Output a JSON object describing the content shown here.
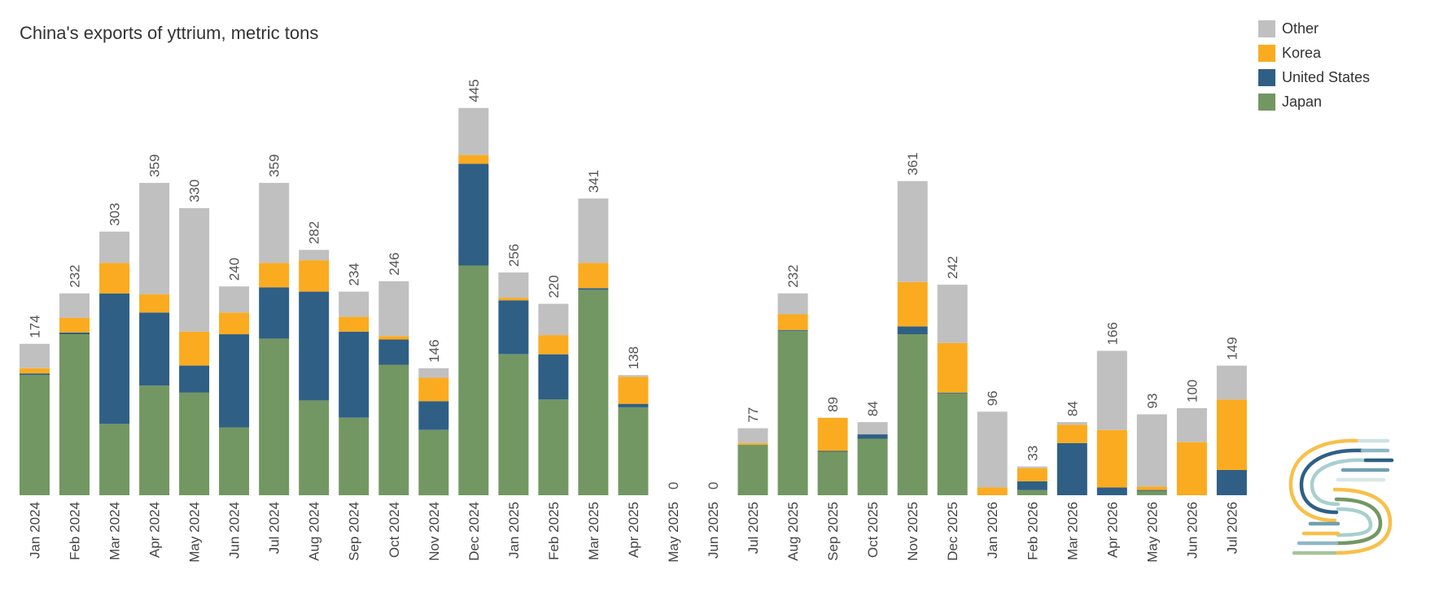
{
  "colors": {
    "Other": "#c0c0c0",
    "Korea": "#fbab1f",
    "United States": "#2f5f85",
    "Japan": "#739762"
  },
  "chart_data": {
    "type": "bar",
    "stacked": true,
    "title": "China's exports of yttrium, metric tons",
    "xlabel": "",
    "ylabel": "",
    "ylim": [
      0,
      460
    ],
    "grid": false,
    "legend_position": "top-right",
    "legend": [
      "Other",
      "Korea",
      "United States",
      "Japan"
    ],
    "categories": [
      "Jan 2024",
      "Feb 2024",
      "Mar 2024",
      "Apr 2024",
      "May 2024",
      "Jun 2024",
      "Jul 2024",
      "Aug 2024",
      "Sep 2024",
      "Oct 2024",
      "Nov 2024",
      "Dec 2024",
      "Jan 2025",
      "Feb 2025",
      "Mar 2025",
      "Apr 2025",
      "May 2025",
      "Jun 2025",
      "Jul 2025",
      "Aug 2025",
      "Sep 2025",
      "Oct 2025",
      "Nov 2025",
      "Dec 2025",
      "Jan 2026",
      "Feb 2026",
      "Mar 2026",
      "Apr 2026",
      "May 2026",
      "Jun 2026",
      "Jul 2026"
    ],
    "totals": [
      "174",
      "232",
      "303",
      "359",
      "330",
      "240",
      "359",
      "282",
      "234",
      "246",
      "146",
      "445",
      "256",
      "220",
      "341",
      "138",
      "0",
      "0",
      "77",
      "232",
      "89",
      "84",
      "361",
      "242",
      "96",
      "33",
      "84",
      "166",
      "93",
      "100",
      "149"
    ],
    "series": [
      {
        "name": "Japan",
        "values": [
          138,
          185,
          82,
          126,
          118,
          78,
          180,
          109,
          89,
          150,
          75,
          264,
          162,
          110,
          236,
          101,
          0,
          0,
          58,
          189,
          50,
          65,
          185,
          117,
          0,
          6,
          0,
          0,
          5,
          0,
          0
        ]
      },
      {
        "name": "United States",
        "values": [
          2,
          2,
          150,
          84,
          31,
          107,
          59,
          125,
          99,
          29,
          33,
          117,
          62,
          52,
          2,
          4,
          0,
          0,
          0,
          1,
          1,
          5,
          9,
          1,
          0,
          10,
          60,
          9,
          1,
          0,
          29
        ]
      },
      {
        "name": "Korea",
        "values": [
          6,
          17,
          35,
          21,
          39,
          25,
          28,
          36,
          17,
          4,
          27,
          10,
          3,
          22,
          29,
          31,
          0,
          0,
          2,
          18,
          38,
          0,
          51,
          57,
          9,
          15,
          21,
          66,
          4,
          61,
          81
        ]
      },
      {
        "name": "Other",
        "values": [
          28,
          28,
          36,
          128,
          142,
          30,
          92,
          12,
          29,
          63,
          11,
          54,
          29,
          36,
          74,
          2,
          0,
          0,
          17,
          24,
          0,
          14,
          116,
          67,
          87,
          2,
          3,
          91,
          83,
          39,
          39
        ]
      }
    ]
  }
}
